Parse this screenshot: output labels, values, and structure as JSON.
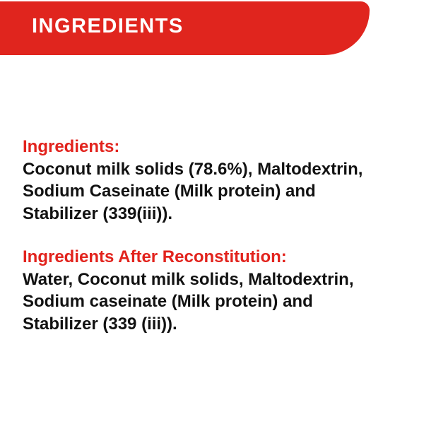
{
  "banner": {
    "title": "INGREDIENTS",
    "bg_color": "#e0251e",
    "text_color": "#ffffff"
  },
  "sections": [
    {
      "heading": "Ingredients:",
      "lines": [
        "Coconut milk solids (78.6%), Maltodextrin,",
        "Sodium Caseinate (Milk protein) and",
        "Stabilizer (339(iii))."
      ]
    },
    {
      "heading": "Ingredients After Reconstitution:",
      "lines": [
        "Water, Coconut milk solids, Maltodextrin,",
        "Sodium caseinate (Milk protein) and",
        "Stabilizer (339 (iii))."
      ]
    }
  ],
  "colors": {
    "heading_red": "#e2231d",
    "body_text": "#121212",
    "background": "#ffffff"
  }
}
